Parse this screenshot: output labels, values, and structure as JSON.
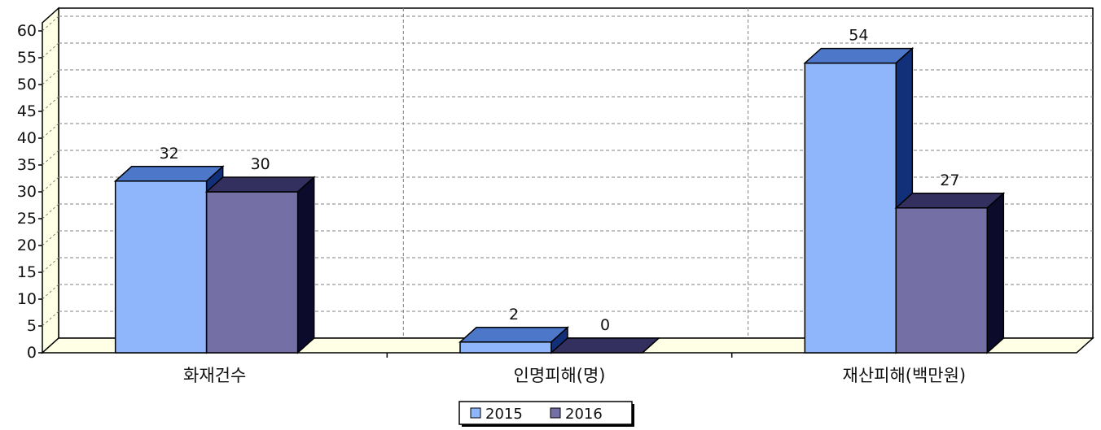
{
  "chart_data": {
    "type": "bar",
    "categories": [
      "화재건수",
      "인명피해(명)",
      "재산피해(백만원)"
    ],
    "series": [
      {
        "name": "2015",
        "values": [
          32,
          2,
          54
        ],
        "color": "#8fb6fb",
        "top_color": "#4d78c9",
        "side_color": "#12307a"
      },
      {
        "name": "2016",
        "values": [
          30,
          0,
          27
        ],
        "color": "#7470a6",
        "top_color": "#33305f",
        "side_color": "#0d0b2b"
      }
    ],
    "data_labels": [
      [
        "32",
        "2",
        "54"
      ],
      [
        "30",
        "0",
        "27"
      ]
    ],
    "yticks": [
      "0",
      "5",
      "10",
      "15",
      "20",
      "25",
      "30",
      "35",
      "40",
      "45",
      "50",
      "55",
      "60"
    ],
    "ylim": [
      0,
      60
    ],
    "grid": true,
    "legend_position": "bottom-center",
    "colors": {
      "wall": "#ffffe6",
      "grid": "#808080",
      "axis": "#000000"
    }
  }
}
